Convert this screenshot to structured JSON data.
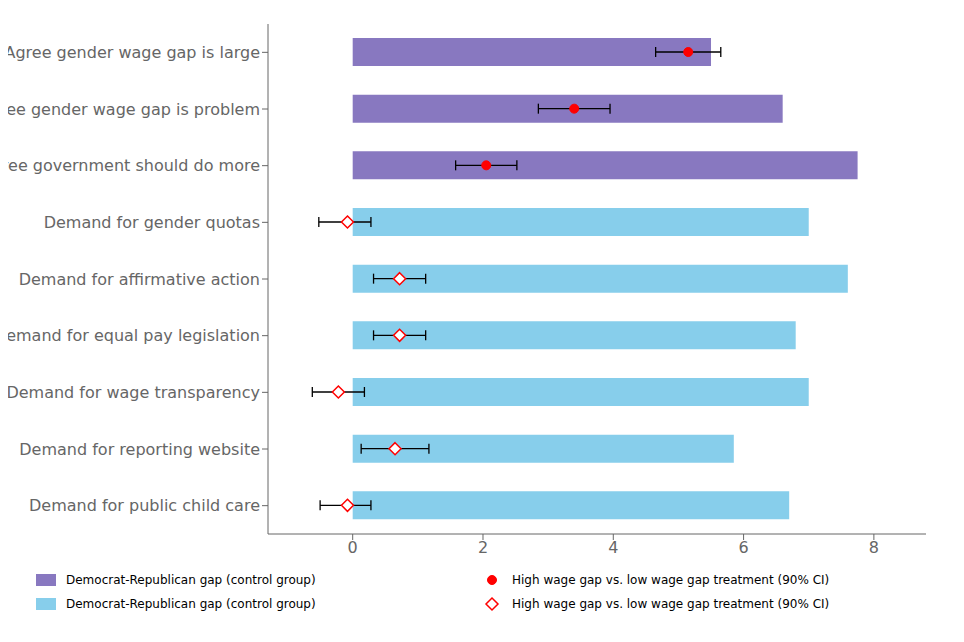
{
  "chart_data": {
    "type": "bar",
    "orientation": "horizontal",
    "categories": [
      "Agree gender wage gap is large",
      "Agree gender wage gap is problem",
      "Agree government should do more",
      "Demand for gender quotas",
      "Demand for affirmative action",
      "Demand for equal pay legislation",
      "Demand for wage transparency",
      "Demand for reporting website",
      "Demand for public child care"
    ],
    "xlim": [
      -1.3,
      8.8
    ],
    "xticks": [
      0,
      2,
      4,
      6,
      8
    ],
    "grid": false,
    "legend": "bottom",
    "series": [
      {
        "name": "Democrat-Republican gap (control group)",
        "type": "bar",
        "color": "#8878c0",
        "values": [
          5.5,
          6.6,
          7.75,
          null,
          null,
          null,
          null,
          null,
          null
        ]
      },
      {
        "name": "High wage gap vs. low wage gap treatment (90% CI)",
        "type": "scatter",
        "color": "red",
        "marker": "circle",
        "values": [
          5.15,
          3.4,
          2.05,
          null,
          null,
          null,
          null,
          null,
          null
        ],
        "ci_low": [
          4.65,
          2.85,
          1.58,
          null,
          null,
          null,
          null,
          null,
          null
        ],
        "ci_high": [
          5.65,
          3.95,
          2.52,
          null,
          null,
          null,
          null,
          null,
          null
        ]
      },
      {
        "name": "Democrat-Republican gap (control group)",
        "type": "bar",
        "color": "#87CEEB",
        "values": [
          null,
          null,
          null,
          7.0,
          7.6,
          6.8,
          7.0,
          5.85,
          6.7
        ]
      },
      {
        "name": "High wage gap vs. low wage gap treatment (90% CI)",
        "type": "scatter",
        "color": "red",
        "marker": "open_diamond",
        "values": [
          null,
          null,
          null,
          -0.08,
          0.72,
          0.72,
          -0.22,
          0.65,
          -0.08
        ],
        "ci_low": [
          null,
          null,
          null,
          -0.52,
          0.32,
          0.32,
          -0.62,
          0.13,
          -0.5
        ],
        "ci_high": [
          null,
          null,
          null,
          0.28,
          1.12,
          1.12,
          0.18,
          1.17,
          0.28
        ]
      }
    ]
  }
}
